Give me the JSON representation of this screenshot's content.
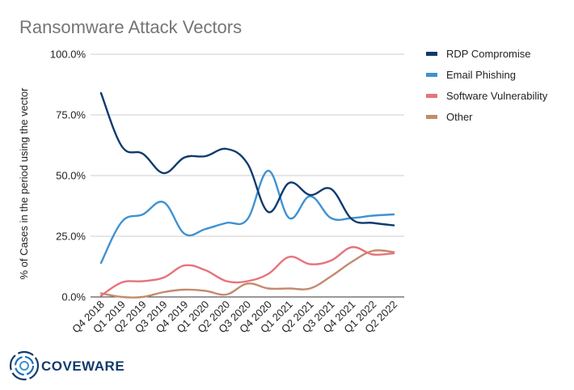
{
  "logo": {
    "text": "COVEWARE"
  },
  "chart_data": {
    "type": "line",
    "title": "Ransomware Attack Vectors",
    "xlabel": "",
    "ylabel": "% of Cases in the period using the vector",
    "ylim": [
      0,
      100
    ],
    "y_ticks": [
      "0.0%",
      "25.0%",
      "50.0%",
      "75.0%",
      "100.0%"
    ],
    "grid": "horizontal",
    "legend_position": "right",
    "categories": [
      "Q4 2018",
      "Q1 2019",
      "Q2 2019",
      "Q3 2019",
      "Q4 2019",
      "Q1 2020",
      "Q2 2020",
      "Q3 2020",
      "Q4 2020",
      "Q1 2021",
      "Q2 2021",
      "Q3 2021",
      "Q4 2021",
      "Q1 2022",
      "Q2 2022"
    ],
    "series": [
      {
        "name": "RDP Compromise",
        "color": "#0f3a6e",
        "values": [
          84,
          62,
          59,
          51,
          57.5,
          58,
          61,
          55,
          35,
          47,
          42,
          44.5,
          32,
          30.5,
          29.5
        ]
      },
      {
        "name": "Email Phishing",
        "color": "#3f92d2",
        "values": [
          14,
          31,
          34,
          39,
          26,
          28,
          30.5,
          32,
          52,
          32.5,
          41.5,
          32.5,
          32.5,
          33.5,
          34
        ]
      },
      {
        "name": "Software Vulnerability",
        "color": "#e8727c",
        "values": [
          0.5,
          6,
          6.5,
          8,
          13,
          11,
          6.5,
          6.5,
          9.5,
          16.5,
          13.5,
          15,
          20.5,
          17.5,
          18
        ]
      },
      {
        "name": "Other",
        "color": "#c48a6e",
        "values": [
          1.5,
          0,
          0,
          2,
          3,
          2.5,
          1,
          5.5,
          3.5,
          3.5,
          3.5,
          8.5,
          14.5,
          19,
          18.5
        ]
      }
    ]
  }
}
